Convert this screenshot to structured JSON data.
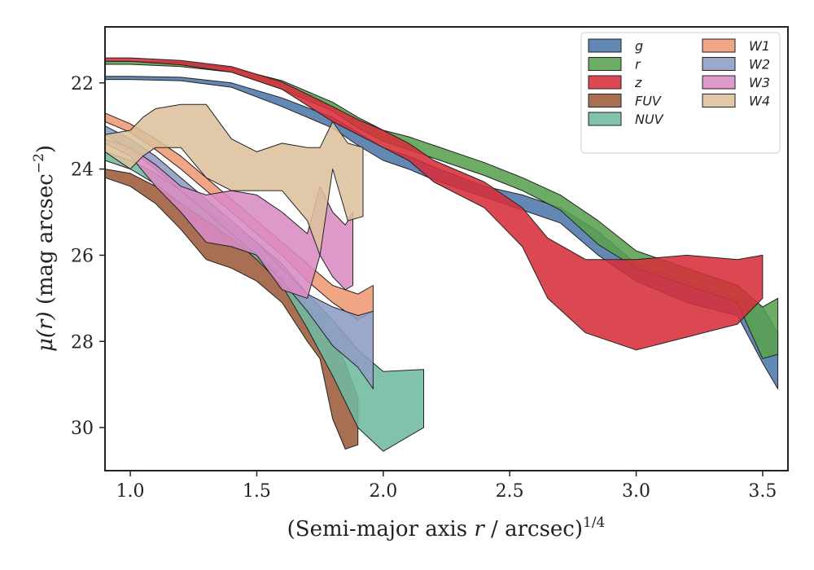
{
  "chart_data": {
    "type": "area",
    "xlabel_prefix": "(Semi-major axis ",
    "xlabel_var": "r",
    "xlabel_suffix": " / arcsec)",
    "xlabel_exp": "1/4",
    "ylabel_var": "μ(r)",
    "ylabel_unit": " (mag arcsec",
    "ylabel_exp": "−2",
    "ylabel_close": ")",
    "xlim": [
      0.9,
      3.6
    ],
    "ylim": [
      31.0,
      20.7
    ],
    "y_inverted": true,
    "xticks": [
      "1.0",
      "1.5",
      "2.0",
      "2.5",
      "3.0",
      "3.5"
    ],
    "xtick_values": [
      1.0,
      1.5,
      2.0,
      2.5,
      3.0,
      3.5
    ],
    "yticks": [
      "22",
      "24",
      "26",
      "28",
      "30"
    ],
    "ytick_values": [
      22,
      24,
      26,
      28,
      30
    ],
    "grid": false,
    "legend_position": "top-right",
    "legend_columns": 2,
    "series": [
      {
        "name": "g",
        "color": "#4c78a8",
        "x": [
          0.9,
          1.0,
          1.2,
          1.4,
          1.6,
          1.8,
          1.9,
          2.0,
          2.1,
          2.2,
          2.4,
          2.55,
          2.7,
          2.85,
          3.0,
          3.2,
          3.4,
          3.5,
          3.56
        ],
        "top": [
          21.85,
          21.85,
          21.87,
          22.0,
          22.35,
          22.8,
          23.15,
          23.5,
          23.7,
          23.95,
          24.4,
          24.6,
          24.9,
          25.45,
          26.2,
          26.6,
          27.0,
          27.2,
          27.8
        ],
        "bot": [
          21.92,
          21.92,
          21.95,
          22.1,
          22.55,
          23.05,
          23.45,
          23.8,
          24.0,
          24.25,
          24.65,
          24.95,
          25.25,
          26.0,
          26.6,
          27.1,
          27.4,
          28.5,
          29.1
        ]
      },
      {
        "name": "r",
        "color": "#59a14f",
        "x": [
          0.9,
          1.0,
          1.2,
          1.4,
          1.6,
          1.8,
          1.9,
          2.0,
          2.1,
          2.2,
          2.4,
          2.55,
          2.7,
          2.85,
          3.0,
          3.2,
          3.4,
          3.5,
          3.56
        ],
        "top": [
          21.5,
          21.5,
          21.52,
          21.65,
          21.95,
          22.45,
          22.8,
          23.1,
          23.25,
          23.45,
          23.85,
          24.2,
          24.6,
          25.2,
          25.9,
          26.3,
          26.7,
          27.2,
          27.0
        ],
        "bot": [
          21.57,
          21.57,
          21.62,
          21.75,
          22.15,
          22.65,
          23.05,
          23.35,
          23.55,
          23.75,
          24.15,
          24.5,
          24.95,
          25.75,
          26.3,
          26.7,
          27.1,
          28.4,
          28.3
        ]
      },
      {
        "name": "z",
        "color": "#d62f3a",
        "x": [
          0.9,
          1.0,
          1.2,
          1.4,
          1.6,
          1.8,
          1.9,
          2.0,
          2.1,
          2.2,
          2.4,
          2.55,
          2.65,
          2.8,
          3.0,
          3.2,
          3.4,
          3.5
        ],
        "top": [
          21.42,
          21.42,
          21.48,
          21.62,
          21.98,
          22.55,
          22.85,
          23.1,
          23.4,
          23.8,
          24.3,
          24.9,
          25.6,
          26.1,
          26.1,
          26.0,
          26.1,
          26.0
        ],
        "bot": [
          21.5,
          21.5,
          21.58,
          21.75,
          22.15,
          22.9,
          23.2,
          23.5,
          23.8,
          24.3,
          24.9,
          25.8,
          27.0,
          27.8,
          28.2,
          27.9,
          27.6,
          27.0
        ]
      },
      {
        "name": "FUV",
        "color": "#9c5b3a",
        "x": [
          0.9,
          1.0,
          1.1,
          1.2,
          1.3,
          1.4,
          1.5,
          1.6,
          1.7,
          1.75,
          1.8,
          1.85,
          1.9
        ],
        "top": [
          24.0,
          24.1,
          24.4,
          24.8,
          25.2,
          25.6,
          26.0,
          26.5,
          27.2,
          27.4,
          28.0,
          28.5,
          29.3
        ],
        "bot": [
          24.2,
          24.4,
          24.8,
          25.4,
          26.1,
          26.3,
          26.6,
          27.1,
          28.0,
          28.4,
          29.8,
          30.5,
          30.4
        ]
      },
      {
        "name": "NUV",
        "color": "#6fb99f",
        "x": [
          0.9,
          1.0,
          1.1,
          1.2,
          1.3,
          1.4,
          1.5,
          1.6,
          1.7,
          1.8,
          1.9,
          2.0,
          2.16
        ],
        "top": [
          23.6,
          23.8,
          24.1,
          24.5,
          24.9,
          25.3,
          25.7,
          26.2,
          26.9,
          27.5,
          28.2,
          28.7,
          28.65
        ],
        "bot": [
          23.8,
          24.0,
          24.35,
          24.8,
          25.2,
          25.6,
          26.1,
          26.7,
          27.7,
          28.8,
          30.0,
          30.55,
          30.0
        ]
      },
      {
        "name": "W1",
        "color": "#ee9873",
        "x": [
          0.9,
          1.0,
          1.1,
          1.2,
          1.3,
          1.4,
          1.5,
          1.6,
          1.7,
          1.8,
          1.9,
          1.96
        ],
        "top": [
          22.7,
          22.95,
          23.3,
          23.7,
          24.2,
          24.7,
          25.2,
          25.7,
          26.2,
          26.7,
          26.9,
          26.7
        ],
        "bot": [
          22.9,
          23.15,
          23.55,
          24.0,
          24.5,
          25.0,
          25.5,
          26.0,
          26.6,
          27.1,
          27.5,
          27.3
        ]
      },
      {
        "name": "W2",
        "color": "#8e9cc4",
        "x": [
          0.9,
          1.0,
          1.1,
          1.2,
          1.3,
          1.4,
          1.5,
          1.6,
          1.7,
          1.8,
          1.9,
          1.96
        ],
        "top": [
          23.0,
          23.3,
          23.7,
          24.2,
          24.7,
          25.2,
          25.7,
          26.3,
          26.9,
          27.2,
          27.4,
          27.3
        ],
        "bot": [
          23.2,
          23.55,
          24.0,
          24.5,
          25.0,
          25.5,
          26.0,
          26.6,
          27.3,
          28.1,
          28.6,
          29.1
        ]
      },
      {
        "name": "W3",
        "color": "#d98bc4",
        "x": [
          0.9,
          1.0,
          1.1,
          1.2,
          1.3,
          1.4,
          1.5,
          1.6,
          1.7,
          1.75,
          1.8,
          1.85,
          1.88
        ],
        "top": [
          23.3,
          23.5,
          23.9,
          24.4,
          24.6,
          24.5,
          24.6,
          25.0,
          25.5,
          24.4,
          25.0,
          25.3,
          25.0
        ],
        "bot": [
          23.4,
          23.7,
          24.4,
          25.0,
          25.7,
          25.8,
          26.0,
          26.8,
          27.0,
          26.0,
          26.5,
          26.8,
          26.7
        ]
      },
      {
        "name": "W4",
        "color": "#dcc09c",
        "x": [
          0.9,
          1.0,
          1.05,
          1.1,
          1.2,
          1.3,
          1.4,
          1.5,
          1.6,
          1.7,
          1.75,
          1.8,
          1.86,
          1.92
        ],
        "top": [
          23.2,
          23.1,
          22.8,
          22.6,
          22.5,
          22.5,
          23.3,
          23.6,
          23.4,
          23.5,
          23.5,
          22.9,
          23.4,
          23.5
        ],
        "bot": [
          23.6,
          24.0,
          23.7,
          23.5,
          23.5,
          24.2,
          24.5,
          24.5,
          24.5,
          25.2,
          26.0,
          24.0,
          25.2,
          25.1
        ]
      }
    ]
  }
}
